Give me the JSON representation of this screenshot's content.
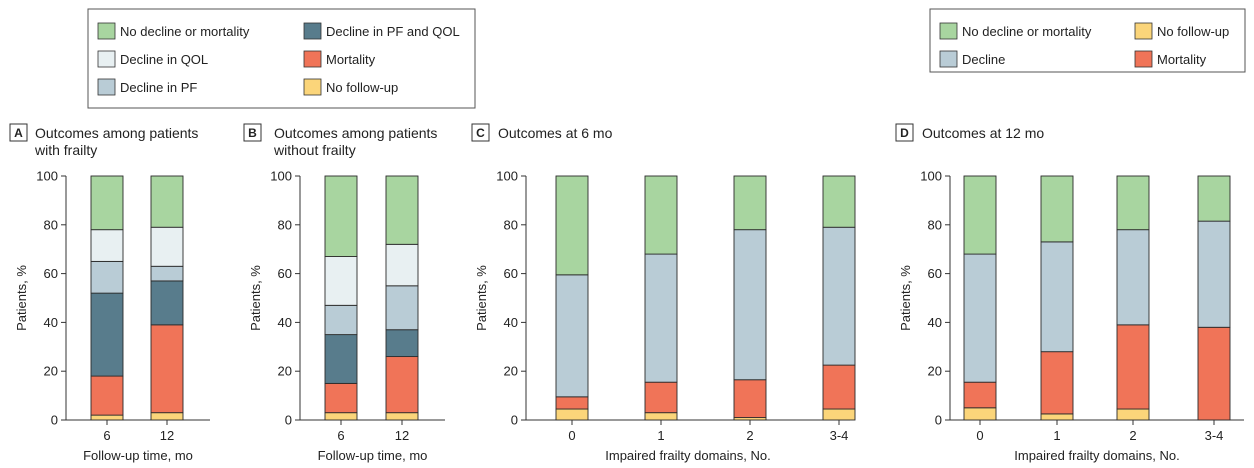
{
  "colors": {
    "no_decline": "#a8d5a0",
    "decline_qol": "#e8f0f2",
    "decline_pf": "#b9ccd6",
    "decline_pf_qol": "#587c8c",
    "decline": "#b9ccd6",
    "mortality": "#f07458",
    "no_followup": "#fbd57a"
  },
  "legends": [
    {
      "id": "legend-1",
      "items": [
        {
          "label": "No decline or mortality",
          "color_key": "no_decline"
        },
        {
          "label": "Decline in PF and QOL",
          "color_key": "decline_pf_qol"
        },
        {
          "label": "Decline in QOL",
          "color_key": "decline_qol"
        },
        {
          "label": "Mortality",
          "color_key": "mortality"
        },
        {
          "label": "Decline in PF",
          "color_key": "decline_pf"
        },
        {
          "label": "No follow-up",
          "color_key": "no_followup"
        }
      ]
    },
    {
      "id": "legend-2",
      "items": [
        {
          "label": "No decline or mortality",
          "color_key": "no_decline"
        },
        {
          "label": "No follow-up",
          "color_key": "no_followup"
        },
        {
          "label": "Decline",
          "color_key": "decline"
        },
        {
          "label": "Mortality",
          "color_key": "mortality"
        }
      ]
    }
  ],
  "chart_data": [
    {
      "panel": "A",
      "type": "bar",
      "stacked": true,
      "title": "Outcomes among patients with frailty",
      "xlabel": "Follow-up time, mo",
      "ylabel": "Patients, %",
      "ylim": [
        0,
        100
      ],
      "yticks": [
        0,
        20,
        40,
        60,
        80,
        100
      ],
      "categories": [
        "6",
        "12"
      ],
      "series": [
        {
          "name": "No follow-up",
          "color_key": "no_followup",
          "values": [
            2,
            3
          ]
        },
        {
          "name": "Mortality",
          "color_key": "mortality",
          "values": [
            16,
            36
          ]
        },
        {
          "name": "Decline in PF and QOL",
          "color_key": "decline_pf_qol",
          "values": [
            34,
            18
          ]
        },
        {
          "name": "Decline in PF",
          "color_key": "decline_pf",
          "values": [
            13,
            6
          ]
        },
        {
          "name": "Decline in QOL",
          "color_key": "decline_qol",
          "values": [
            13,
            16
          ]
        },
        {
          "name": "No decline or mortality",
          "color_key": "no_decline",
          "values": [
            22,
            21
          ]
        }
      ]
    },
    {
      "panel": "B",
      "type": "bar",
      "stacked": true,
      "title": "Outcomes among patients without frailty",
      "xlabel": "Follow-up time, mo",
      "ylabel": "Patients, %",
      "ylim": [
        0,
        100
      ],
      "yticks": [
        0,
        20,
        40,
        60,
        80,
        100
      ],
      "categories": [
        "6",
        "12"
      ],
      "series": [
        {
          "name": "No follow-up",
          "color_key": "no_followup",
          "values": [
            3,
            3
          ]
        },
        {
          "name": "Mortality",
          "color_key": "mortality",
          "values": [
            12,
            23
          ]
        },
        {
          "name": "Decline in PF and QOL",
          "color_key": "decline_pf_qol",
          "values": [
            20,
            11
          ]
        },
        {
          "name": "Decline in PF",
          "color_key": "decline_pf",
          "values": [
            12,
            18
          ]
        },
        {
          "name": "Decline in QOL",
          "color_key": "decline_qol",
          "values": [
            20,
            17
          ]
        },
        {
          "name": "No decline or mortality",
          "color_key": "no_decline",
          "values": [
            33,
            28
          ]
        }
      ]
    },
    {
      "panel": "C",
      "type": "bar",
      "stacked": true,
      "title": "Outcomes at 6 mo",
      "xlabel": "Impaired frailty domains, No.",
      "ylabel": "Patients, %",
      "ylim": [
        0,
        100
      ],
      "yticks": [
        0,
        20,
        40,
        60,
        80,
        100
      ],
      "categories": [
        "0",
        "1",
        "2",
        "3-4"
      ],
      "series": [
        {
          "name": "No follow-up",
          "color_key": "no_followup",
          "values": [
            4.5,
            3,
            1,
            4.5
          ]
        },
        {
          "name": "Mortality",
          "color_key": "mortality",
          "values": [
            5,
            12.5,
            15.5,
            18
          ]
        },
        {
          "name": "Decline",
          "color_key": "decline",
          "values": [
            50,
            52.5,
            61.5,
            56.5
          ]
        },
        {
          "name": "No decline or mortality",
          "color_key": "no_decline",
          "values": [
            40.5,
            32,
            22,
            21
          ]
        }
      ]
    },
    {
      "panel": "D",
      "type": "bar",
      "stacked": true,
      "title": "Outcomes at 12 mo",
      "xlabel": "Impaired frailty domains, No.",
      "ylabel": "Patients, %",
      "ylim": [
        0,
        100
      ],
      "yticks": [
        0,
        20,
        40,
        60,
        80,
        100
      ],
      "categories": [
        "0",
        "1",
        "2",
        "3-4"
      ],
      "series": [
        {
          "name": "No follow-up",
          "color_key": "no_followup",
          "values": [
            5,
            2.5,
            4.5,
            0
          ]
        },
        {
          "name": "Mortality",
          "color_key": "mortality",
          "values": [
            10.5,
            25.5,
            34.5,
            38
          ]
        },
        {
          "name": "Decline",
          "color_key": "decline",
          "values": [
            52.5,
            45,
            39,
            43.5
          ]
        },
        {
          "name": "No decline or mortality",
          "color_key": "no_decline",
          "values": [
            32,
            27,
            22,
            18.5
          ]
        }
      ]
    }
  ]
}
